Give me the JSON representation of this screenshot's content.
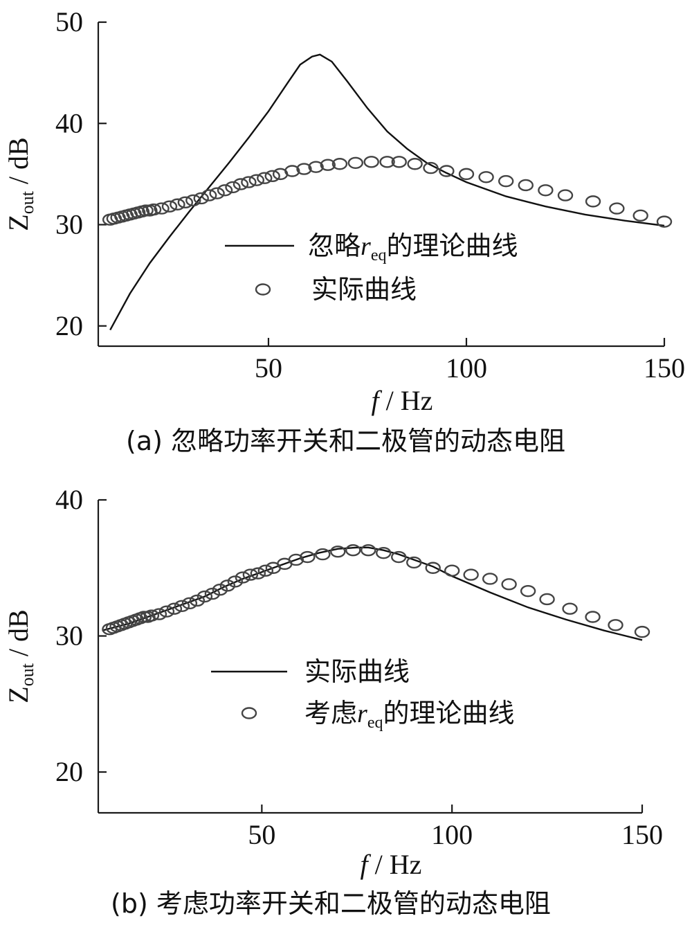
{
  "chart_data": [
    {
      "type": "line",
      "caption": "(a)  忽略功率开关和二极管的动态电阻",
      "xlabel_italic": "f",
      "xlabel_rest": " / Hz",
      "ylabel_main": "Z",
      "ylabel_sub": "out",
      "ylabel_rest": " / dB",
      "xlim": [
        7,
        150
      ],
      "ylim": [
        18,
        50
      ],
      "xticks": [
        50,
        100,
        150
      ],
      "xtick_labels": [
        "50",
        "100",
        "150"
      ],
      "yticks": [
        20,
        30,
        40,
        50
      ],
      "ytick_labels": [
        "20",
        "30",
        "40",
        "50"
      ],
      "legend": [
        {
          "style": "line",
          "prefix": "忽略",
          "var": "r",
          "sub": "eq",
          "suffix": "的理论曲线"
        },
        {
          "style": "circle",
          "prefix": "实际曲线",
          "var": "",
          "sub": "",
          "suffix": ""
        }
      ],
      "series": [
        {
          "style": "line",
          "x": [
            10,
            15,
            20,
            25,
            30,
            35,
            40,
            45,
            50,
            55,
            58,
            61,
            63,
            66,
            70,
            75,
            80,
            85,
            90,
            95,
            100,
            110,
            120,
            130,
            140,
            150
          ],
          "y": [
            19.6,
            23.2,
            26.2,
            28.8,
            31.3,
            33.7,
            36.1,
            38.6,
            41.2,
            44.1,
            45.8,
            46.6,
            46.8,
            46.1,
            44.1,
            41.5,
            39.2,
            37.5,
            36.1,
            35.1,
            34.2,
            32.8,
            31.8,
            31.0,
            30.4,
            29.9
          ]
        },
        {
          "style": "circle",
          "x": [
            10,
            11,
            12,
            13,
            14,
            15,
            16,
            17,
            18,
            19,
            20,
            21,
            23,
            25,
            27,
            29,
            31,
            33,
            35,
            37,
            39,
            41,
            43,
            45,
            47,
            49,
            51,
            53,
            56,
            59,
            62,
            65,
            68,
            72,
            76,
            80,
            83,
            87,
            91,
            95,
            100,
            105,
            110,
            115,
            120,
            125,
            132,
            138,
            144,
            150
          ],
          "y": [
            30.5,
            30.6,
            30.7,
            30.8,
            30.9,
            31.0,
            31.1,
            31.2,
            31.3,
            31.4,
            31.4,
            31.5,
            31.6,
            31.8,
            32.0,
            32.2,
            32.4,
            32.6,
            32.9,
            33.1,
            33.4,
            33.7,
            34.0,
            34.2,
            34.4,
            34.6,
            34.8,
            35.0,
            35.3,
            35.5,
            35.7,
            35.9,
            36.0,
            36.1,
            36.2,
            36.2,
            36.2,
            36.0,
            35.6,
            35.3,
            35.0,
            34.7,
            34.3,
            33.9,
            33.4,
            32.9,
            32.3,
            31.6,
            30.9,
            30.3
          ]
        }
      ]
    },
    {
      "type": "line",
      "caption": "(b)  考虑功率开关和二极管的动态电阻",
      "xlabel_italic": "f",
      "xlabel_rest": " / Hz",
      "ylabel_main": "Z",
      "ylabel_sub": "out",
      "ylabel_rest": " / dB",
      "xlim": [
        7,
        150
      ],
      "ylim": [
        17,
        40
      ],
      "xticks": [
        50,
        100,
        150
      ],
      "xtick_labels": [
        "50",
        "100",
        "150"
      ],
      "yticks": [
        20,
        30,
        40
      ],
      "ytick_labels": [
        "20",
        "30",
        "40"
      ],
      "legend": [
        {
          "style": "line",
          "prefix": "实际曲线",
          "var": "",
          "sub": "",
          "suffix": ""
        },
        {
          "style": "circle",
          "prefix": "考虑",
          "var": "r",
          "sub": "eq",
          "suffix": "的理论曲线"
        }
      ],
      "series": [
        {
          "style": "line",
          "x": [
            8,
            15,
            20,
            25,
            30,
            35,
            40,
            45,
            50,
            55,
            60,
            65,
            70,
            75,
            78,
            82,
            86,
            90,
            95,
            100,
            110,
            120,
            130,
            140,
            150
          ],
          "y": [
            30.4,
            30.9,
            31.4,
            31.9,
            32.4,
            32.9,
            33.6,
            34.2,
            34.7,
            35.2,
            35.7,
            36.1,
            36.4,
            36.5,
            36.5,
            36.3,
            36.0,
            35.6,
            35.1,
            34.4,
            33.2,
            32.1,
            31.2,
            30.4,
            29.7
          ]
        },
        {
          "style": "circle",
          "x": [
            10,
            11,
            12,
            13,
            14,
            15,
            16,
            17,
            18,
            19,
            20,
            21,
            23,
            25,
            27,
            29,
            31,
            33,
            35,
            37,
            39,
            41,
            43,
            45,
            47,
            49,
            51,
            53,
            56,
            59,
            62,
            66,
            70,
            74,
            78,
            82,
            86,
            90,
            95,
            100,
            105,
            110,
            115,
            120,
            125,
            131,
            137,
            143,
            150
          ],
          "y": [
            30.5,
            30.6,
            30.7,
            30.8,
            30.9,
            31.0,
            31.1,
            31.2,
            31.3,
            31.4,
            31.4,
            31.5,
            31.6,
            31.8,
            32.0,
            32.2,
            32.4,
            32.6,
            32.9,
            33.1,
            33.4,
            33.7,
            34.0,
            34.3,
            34.5,
            34.6,
            34.8,
            35.0,
            35.3,
            35.6,
            35.8,
            36.0,
            36.2,
            36.3,
            36.3,
            36.1,
            35.8,
            35.4,
            35.0,
            34.8,
            34.5,
            34.2,
            33.8,
            33.3,
            32.7,
            32.0,
            31.4,
            30.8,
            30.3
          ]
        }
      ]
    }
  ]
}
